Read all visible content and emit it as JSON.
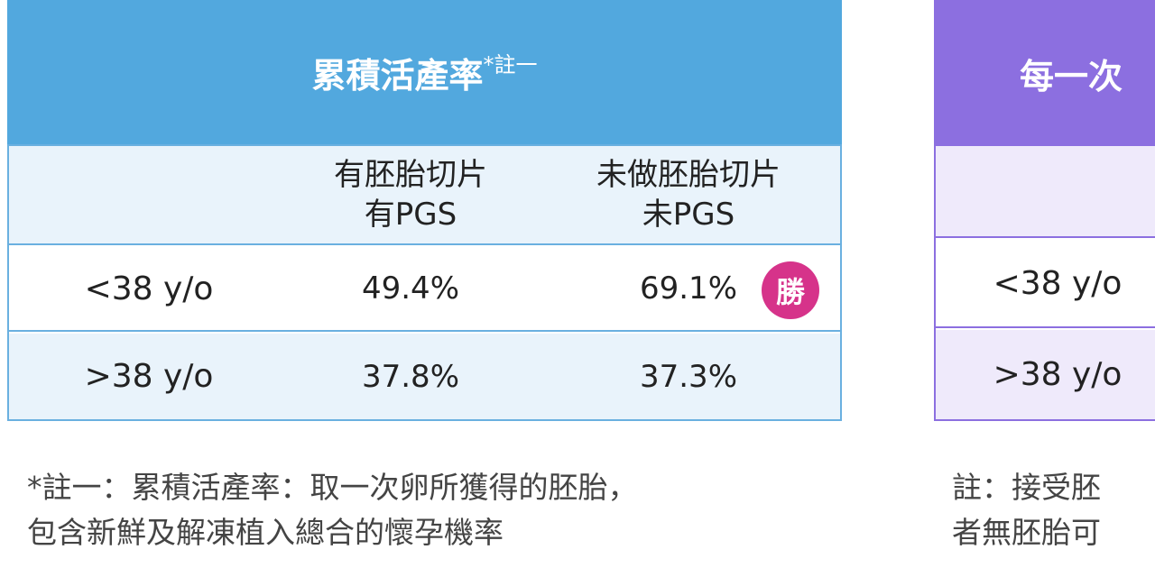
{
  "left_table": {
    "title": "累積活產率",
    "title_note": "*註一",
    "header": [
      [
        "有胚胎切片",
        "有PGS"
      ],
      [
        "未做胚胎切片",
        "未PGS"
      ]
    ],
    "rows": [
      [
        "<38 y/o",
        "49.4%",
        "69.1%"
      ],
      [
        ">38 y/o",
        "37.8%",
        "37.3%"
      ]
    ],
    "badge": "勝",
    "note": [
      "*註一：累積活產率：取一次卵所獲得的胚胎，",
      "包含新鮮及解凍植入總合的懷孕機率"
    ]
  },
  "right_table": {
    "title": "每一次",
    "rows": [
      "<38 y/o",
      ">38 y/o"
    ],
    "note": [
      "註：接受胚",
      "者無胚胎可"
    ]
  }
}
